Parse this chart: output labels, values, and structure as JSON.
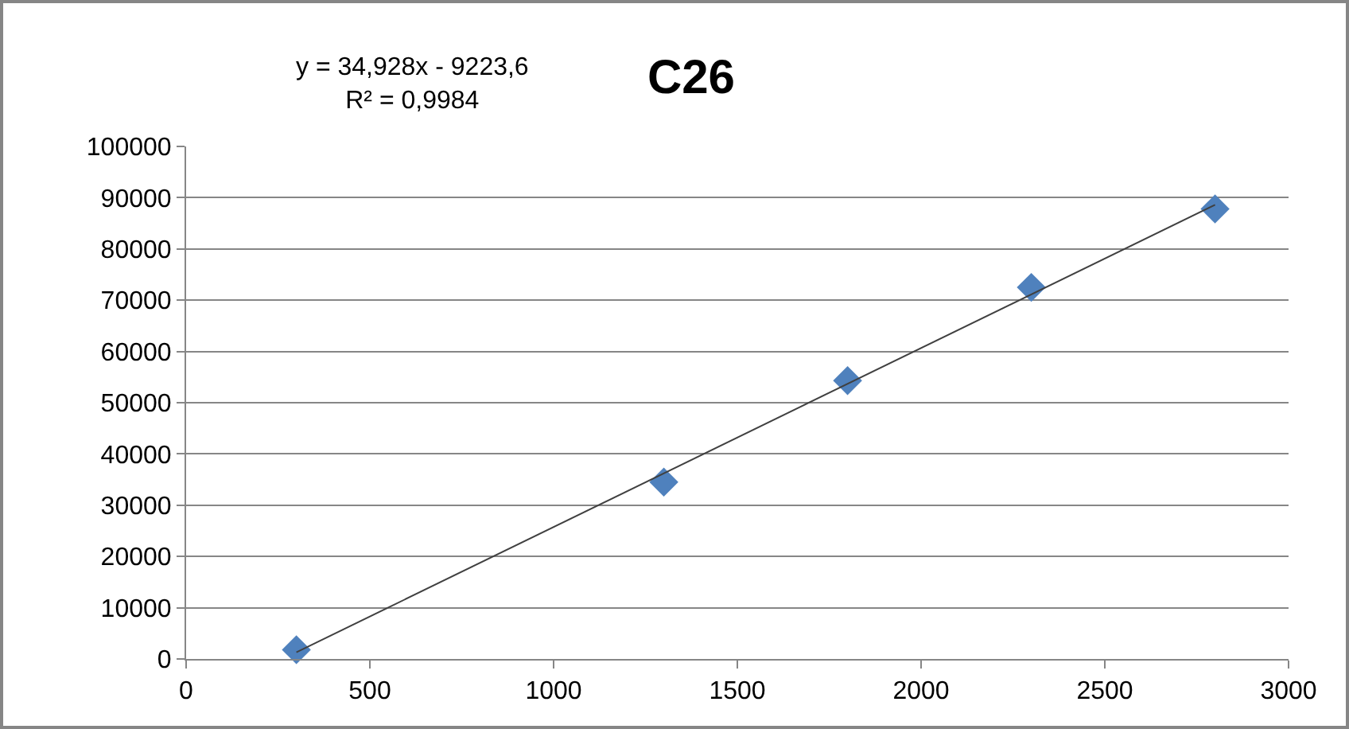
{
  "chart_data": {
    "type": "scatter",
    "title": "C26",
    "annotations": [
      "y = 34,928x - 9223,6\nR² = 0,9984"
    ],
    "series": [
      {
        "color": "#4f81bd",
        "marker": "diamond",
        "x": [
          300,
          1300,
          1800,
          2300,
          2800
        ],
        "values": [
          1800,
          34500,
          54300,
          72500,
          87800
        ]
      },
      {
        "type": "line",
        "color": "#404040",
        "marker": "none",
        "line_style": "solid",
        "x": [
          300,
          2800
        ],
        "values": [
          1300,
          88600
        ]
      }
    ],
    "xlim": [
      0,
      3000
    ],
    "xticks": [
      0,
      500,
      1000,
      1500,
      2000,
      2500,
      3000
    ],
    "ylim": [
      0,
      100000
    ],
    "yticks": [
      0,
      10000,
      20000,
      30000,
      40000,
      50000,
      60000,
      70000,
      80000,
      90000,
      100000
    ],
    "grid": "y"
  }
}
